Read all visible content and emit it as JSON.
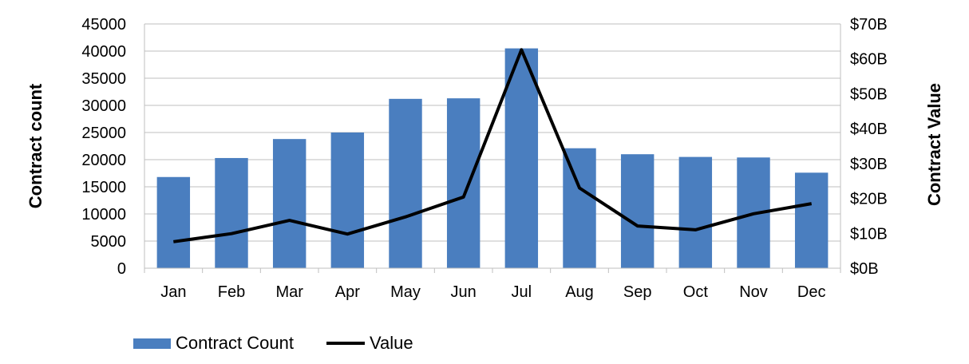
{
  "chart_data": {
    "type": "bar",
    "categories": [
      "Jan",
      "Feb",
      "Mar",
      "Apr",
      "May",
      "Jun",
      "Jul",
      "Aug",
      "Sep",
      "Oct",
      "Nov",
      "Dec"
    ],
    "series": [
      {
        "name": "Contract Count",
        "type": "bar",
        "axis": "left",
        "color": "#4a7ebf",
        "values": [
          16800,
          20300,
          23800,
          25000,
          31200,
          31300,
          40500,
          22100,
          21000,
          20500,
          20400,
          17600
        ]
      },
      {
        "name": "Value",
        "type": "line",
        "axis": "right",
        "color": "#000000",
        "values": [
          7.6,
          9.9,
          13.7,
          9.8,
          14.7,
          20.4,
          62.6,
          23.0,
          12.1,
          11.0,
          15.6,
          18.5
        ]
      }
    ],
    "ylabel": "Contract count",
    "ylabel_right": "Contract Value",
    "ylim": [
      0,
      45000
    ],
    "yticks": [
      "0",
      "5000",
      "10000",
      "15000",
      "20000",
      "25000",
      "30000",
      "35000",
      "40000",
      "45000"
    ],
    "ylim_right": [
      0,
      70
    ],
    "yticks_right": [
      "$0B",
      "$10B",
      "$20B",
      "$30B",
      "$40B",
      "$50B",
      "$60B",
      "$70B"
    ],
    "grid": true,
    "legend_position": "bottom-left"
  }
}
